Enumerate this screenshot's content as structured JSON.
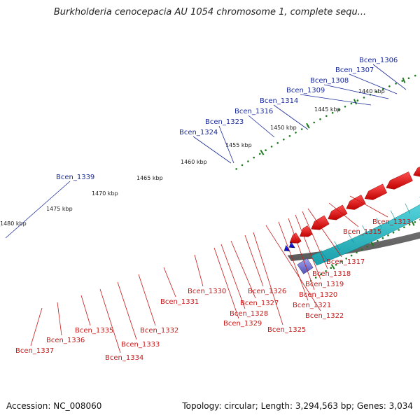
{
  "title": "Burkholderia cenocepacia AU 1054 chromosome 1, complete sequ...",
  "accession_text": "Accession: NC_008060",
  "stats_text": "Topology: circular; Length: 3,294,563 bp; Genes: 3,034",
  "colors": {
    "forward_gene": "#ee1c1c",
    "reverse_gene": "#1414dd",
    "backbone": "#888888",
    "tick_dot": "#1f7a1f",
    "cds_teal": "#2bbcc4",
    "label_blue": "#1a2a9a",
    "label_red": "#c81818"
  },
  "ticks": [
    "1480 kbp",
    "1475 kbp",
    "1470 kbp",
    "1465 kbp",
    "1460 kbp",
    "1455 kbp",
    "1450 kbp",
    "1445 kbp",
    "1440 kbp"
  ],
  "labels_top": [
    "Bcen_1339",
    "Bcen_1324",
    "Bcen_1323",
    "Bcen_1316",
    "Bcen_1314",
    "Bcen_1309",
    "Bcen_1308",
    "Bcen_1307",
    "Bcen_1306"
  ],
  "labels_bottom": [
    "Bcen_1337",
    "Bcen_1336",
    "Bcen_1335",
    "Bcen_1334",
    "Bcen_1333",
    "Bcen_1332",
    "Bcen_1331",
    "Bcen_1330",
    "Bcen_1329",
    "Bcen_1328",
    "Bcen_1327",
    "Bcen_1326",
    "Bcen_1325",
    "Bcen_1322",
    "Bcen_1321",
    "Bcen_1320",
    "Bcen_1319",
    "Bcen_1318",
    "Bcen_1317",
    "Bcen_1315",
    "Bcen_1313"
  ]
}
